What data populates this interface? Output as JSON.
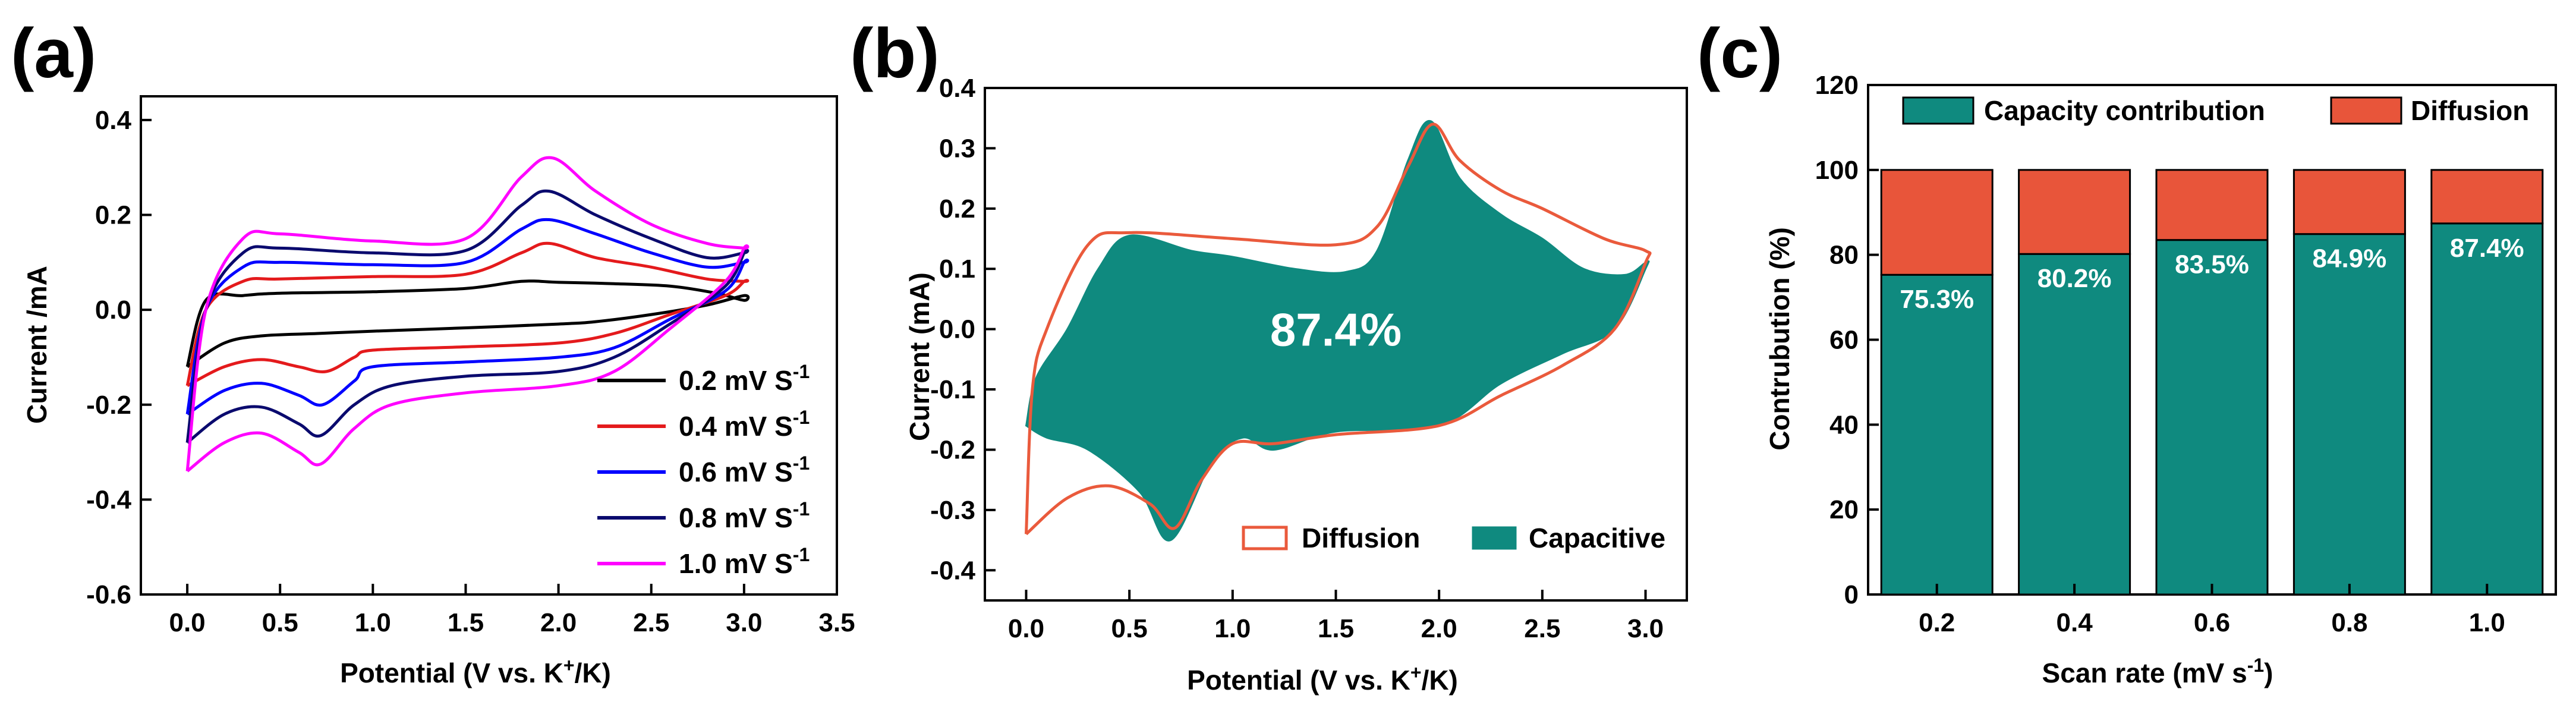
{
  "figure": {
    "panels": [
      {
        "letter": "(a)"
      },
      {
        "letter": "(b)"
      },
      {
        "letter": "(c)"
      }
    ]
  },
  "colors": {
    "capacitive": "#0f8a7f",
    "diffusion": "#e8553a",
    "diffusion_line": "#ea5a3c",
    "axis": "#000000",
    "background": "#ffffff"
  },
  "chart_data": [
    {
      "type": "line",
      "panel": "(a)",
      "title": "",
      "xlabel": "Potential (V vs. K+/K)",
      "xlabel_parts": {
        "pre": "Potential (V vs. K",
        "sup": "+",
        "post": "/K)"
      },
      "ylabel": "Current /mA",
      "xlim": [
        -0.25,
        3.5
      ],
      "ylim": [
        -0.6,
        0.45
      ],
      "xticks": [
        "0.0",
        "0.5",
        "1.0",
        "1.5",
        "2.0",
        "2.5",
        "3.0",
        "3.5"
      ],
      "xtick_values": [
        0,
        0.5,
        1.0,
        1.5,
        2.0,
        2.5,
        3.0,
        3.5
      ],
      "yticks": [
        "-0.6",
        "-0.4",
        "-0.2",
        "0.0",
        "0.2",
        "0.4"
      ],
      "ytick_values": [
        -0.6,
        -0.4,
        -0.2,
        0.0,
        0.2,
        0.4
      ],
      "legend_position": "bottom-right",
      "series": [
        {
          "name": "0.2 mV S-1",
          "label": "0.2 mV S",
          "sup": "-1",
          "color": "#000000",
          "anodic": [
            [
              0,
              -0.12
            ],
            [
              0.1,
              0.02
            ],
            [
              0.3,
              0.03
            ],
            [
              0.5,
              0.035
            ],
            [
              1.0,
              0.038
            ],
            [
              1.5,
              0.045
            ],
            [
              1.8,
              0.06
            ],
            [
              2.0,
              0.058
            ],
            [
              2.3,
              0.055
            ],
            [
              2.6,
              0.05
            ],
            [
              2.85,
              0.035
            ],
            [
              3.0,
              0.02
            ]
          ],
          "cathodic": [
            [
              3.0,
              0.03
            ],
            [
              2.8,
              0.01
            ],
            [
              2.5,
              -0.01
            ],
            [
              2.2,
              -0.025
            ],
            [
              2.0,
              -0.03
            ],
            [
              1.5,
              -0.038
            ],
            [
              1.0,
              -0.045
            ],
            [
              0.7,
              -0.05
            ],
            [
              0.4,
              -0.055
            ],
            [
              0.2,
              -0.07
            ],
            [
              0,
              -0.12
            ]
          ]
        },
        {
          "name": "0.4 mV S-1",
          "label": "0.4 mV S",
          "sup": "-1",
          "color": "#e41a1c",
          "anodic": [
            [
              0,
              -0.16
            ],
            [
              0.1,
              0.0
            ],
            [
              0.3,
              0.06
            ],
            [
              0.5,
              0.065
            ],
            [
              1.0,
              0.07
            ],
            [
              1.5,
              0.075
            ],
            [
              1.8,
              0.12
            ],
            [
              1.95,
              0.14
            ],
            [
              2.2,
              0.11
            ],
            [
              2.5,
              0.09
            ],
            [
              2.8,
              0.065
            ],
            [
              3.0,
              0.06
            ]
          ],
          "cathodic": [
            [
              3.0,
              0.06
            ],
            [
              2.9,
              0.03
            ],
            [
              2.6,
              -0.01
            ],
            [
              2.3,
              -0.05
            ],
            [
              2.0,
              -0.07
            ],
            [
              1.5,
              -0.078
            ],
            [
              1.0,
              -0.085
            ],
            [
              0.9,
              -0.1
            ],
            [
              0.75,
              -0.13
            ],
            [
              0.6,
              -0.12
            ],
            [
              0.4,
              -0.105
            ],
            [
              0.2,
              -0.12
            ],
            [
              0,
              -0.16
            ]
          ]
        },
        {
          "name": "0.6 mV S-1",
          "label": "0.6 mV S",
          "sup": "-1",
          "color": "#0000ff",
          "anodic": [
            [
              0,
              -0.22
            ],
            [
              0.1,
              0.0
            ],
            [
              0.3,
              0.09
            ],
            [
              0.5,
              0.1
            ],
            [
              1.0,
              0.095
            ],
            [
              1.5,
              0.1
            ],
            [
              1.8,
              0.17
            ],
            [
              1.95,
              0.19
            ],
            [
              2.2,
              0.16
            ],
            [
              2.5,
              0.12
            ],
            [
              2.8,
              0.09
            ],
            [
              3.0,
              0.1
            ]
          ],
          "cathodic": [
            [
              3.0,
              0.1
            ],
            [
              2.9,
              0.04
            ],
            [
              2.6,
              -0.02
            ],
            [
              2.3,
              -0.08
            ],
            [
              2.0,
              -0.1
            ],
            [
              1.5,
              -0.11
            ],
            [
              1.0,
              -0.12
            ],
            [
              0.9,
              -0.15
            ],
            [
              0.73,
              -0.2
            ],
            [
              0.6,
              -0.18
            ],
            [
              0.4,
              -0.155
            ],
            [
              0.2,
              -0.17
            ],
            [
              0,
              -0.22
            ]
          ]
        },
        {
          "name": "0.8 mV S-1",
          "label": "0.8 mV S",
          "sup": "-1",
          "color": "#0a0a6e",
          "anodic": [
            [
              0,
              -0.28
            ],
            [
              0.1,
              0.0
            ],
            [
              0.3,
              0.12
            ],
            [
              0.5,
              0.13
            ],
            [
              1.0,
              0.12
            ],
            [
              1.5,
              0.125
            ],
            [
              1.8,
              0.22
            ],
            [
              1.95,
              0.25
            ],
            [
              2.2,
              0.2
            ],
            [
              2.5,
              0.15
            ],
            [
              2.8,
              0.11
            ],
            [
              3.0,
              0.12
            ]
          ],
          "cathodic": [
            [
              3.0,
              0.12
            ],
            [
              2.9,
              0.05
            ],
            [
              2.6,
              -0.03
            ],
            [
              2.3,
              -0.1
            ],
            [
              2.0,
              -0.13
            ],
            [
              1.5,
              -0.14
            ],
            [
              1.1,
              -0.16
            ],
            [
              0.9,
              -0.2
            ],
            [
              0.72,
              -0.265
            ],
            [
              0.6,
              -0.24
            ],
            [
              0.4,
              -0.205
            ],
            [
              0.2,
              -0.22
            ],
            [
              0,
              -0.28
            ]
          ]
        },
        {
          "name": "1.0 mV S-1",
          "label": "1.0 mV S",
          "sup": "-1",
          "color": "#ff00ff",
          "anodic": [
            [
              0,
              -0.34
            ],
            [
              0.1,
              0.0
            ],
            [
              0.3,
              0.15
            ],
            [
              0.5,
              0.16
            ],
            [
              1.0,
              0.145
            ],
            [
              1.5,
              0.15
            ],
            [
              1.8,
              0.28
            ],
            [
              1.97,
              0.32
            ],
            [
              2.2,
              0.25
            ],
            [
              2.5,
              0.18
            ],
            [
              2.8,
              0.14
            ],
            [
              3.0,
              0.13
            ]
          ],
          "cathodic": [
            [
              3.0,
              0.13
            ],
            [
              2.9,
              0.06
            ],
            [
              2.6,
              -0.04
            ],
            [
              2.3,
              -0.13
            ],
            [
              2.0,
              -0.16
            ],
            [
              1.5,
              -0.175
            ],
            [
              1.1,
              -0.2
            ],
            [
              0.9,
              -0.25
            ],
            [
              0.72,
              -0.325
            ],
            [
              0.6,
              -0.3
            ],
            [
              0.4,
              -0.26
            ],
            [
              0.2,
              -0.28
            ],
            [
              0,
              -0.34
            ]
          ]
        }
      ]
    },
    {
      "type": "area",
      "panel": "(b)",
      "title": "",
      "xlabel": "Potential (V vs. K+/K)",
      "xlabel_parts": {
        "pre": "Potential (V vs. K",
        "sup": "+",
        "post": "/K)"
      },
      "ylabel": "Current (mA)",
      "xlim": [
        -0.2,
        3.2
      ],
      "ylim": [
        -0.45,
        0.4
      ],
      "xticks": [
        "0.0",
        "0.5",
        "1.0",
        "1.5",
        "2.0",
        "2.5",
        "3.0"
      ],
      "xtick_values": [
        0,
        0.5,
        1.0,
        1.5,
        2.0,
        2.5,
        3.0
      ],
      "yticks": [
        "-0.4",
        "-0.3",
        "-0.2",
        "-0.1",
        "0.0",
        "0.1",
        "0.2",
        "0.3",
        "0.4"
      ],
      "ytick_values": [
        -0.4,
        -0.3,
        -0.2,
        -0.1,
        0.0,
        0.1,
        0.2,
        0.3,
        0.4
      ],
      "annotation": "87.4%",
      "annotation_at": [
        1.5,
        0.0
      ],
      "legend_position": "bottom-right",
      "series": [
        {
          "name": "Diffusion",
          "color": "#ea5a3c",
          "style": "outline",
          "points": [
            [
              0,
              -0.34
            ],
            [
              0.03,
              -0.1
            ],
            [
              0.1,
              0.0
            ],
            [
              0.3,
              0.14
            ],
            [
              0.5,
              0.16
            ],
            [
              1.0,
              0.15
            ],
            [
              1.5,
              0.14
            ],
            [
              1.7,
              0.17
            ],
            [
              1.85,
              0.27
            ],
            [
              1.97,
              0.34
            ],
            [
              2.1,
              0.28
            ],
            [
              2.3,
              0.23
            ],
            [
              2.5,
              0.2
            ],
            [
              2.8,
              0.15
            ],
            [
              3.0,
              0.13
            ],
            [
              3.0,
              0.11
            ],
            [
              2.85,
              0.0
            ],
            [
              2.6,
              -0.06
            ],
            [
              2.3,
              -0.11
            ],
            [
              2.0,
              -0.16
            ],
            [
              1.5,
              -0.175
            ],
            [
              1.2,
              -0.19
            ],
            [
              1.0,
              -0.19
            ],
            [
              0.85,
              -0.25
            ],
            [
              0.72,
              -0.33
            ],
            [
              0.6,
              -0.29
            ],
            [
              0.4,
              -0.26
            ],
            [
              0.2,
              -0.28
            ],
            [
              0,
              -0.34
            ]
          ]
        },
        {
          "name": "Capacitive",
          "color": "#0f8a7f",
          "style": "filled",
          "points": [
            [
              0,
              -0.16
            ],
            [
              0.05,
              -0.08
            ],
            [
              0.2,
              0.0
            ],
            [
              0.35,
              0.1
            ],
            [
              0.5,
              0.155
            ],
            [
              0.8,
              0.13
            ],
            [
              1.0,
              0.12
            ],
            [
              1.3,
              0.1
            ],
            [
              1.55,
              0.095
            ],
            [
              1.7,
              0.13
            ],
            [
              1.85,
              0.28
            ],
            [
              1.96,
              0.345
            ],
            [
              2.1,
              0.25
            ],
            [
              2.3,
              0.19
            ],
            [
              2.5,
              0.15
            ],
            [
              2.7,
              0.1
            ],
            [
              2.9,
              0.09
            ],
            [
              3.0,
              0.11
            ],
            [
              3.0,
              0.1
            ],
            [
              2.85,
              0.0
            ],
            [
              2.6,
              -0.04
            ],
            [
              2.3,
              -0.09
            ],
            [
              2.0,
              -0.16
            ],
            [
              1.5,
              -0.17
            ],
            [
              1.2,
              -0.2
            ],
            [
              1.05,
              -0.18
            ],
            [
              0.9,
              -0.22
            ],
            [
              0.7,
              -0.35
            ],
            [
              0.55,
              -0.27
            ],
            [
              0.3,
              -0.2
            ],
            [
              0.1,
              -0.18
            ],
            [
              0,
              -0.16
            ]
          ]
        }
      ]
    },
    {
      "type": "bar",
      "panel": "(c)",
      "title": "",
      "xlabel": "Scan rate (mV s-1)",
      "xlabel_parts": {
        "pre": "Scan rate (mV s",
        "sup": "-1",
        "post": ")"
      },
      "ylabel": "Contrubution (%)",
      "ylim": [
        0,
        120
      ],
      "yticks": [
        "0",
        "20",
        "40",
        "60",
        "80",
        "100",
        "120"
      ],
      "ytick_values": [
        0,
        20,
        40,
        60,
        80,
        100,
        120
      ],
      "categories": [
        "0.2",
        "0.4",
        "0.6",
        "0.8",
        "1.0"
      ],
      "legend_position": "top",
      "series": [
        {
          "name": "Capacity contribution",
          "color": "#0f8a7f",
          "values": [
            75.3,
            80.2,
            83.5,
            84.9,
            87.4
          ],
          "labels": [
            "75.3%",
            "80.2%",
            "83.5%",
            "84.9%",
            "87.4%"
          ]
        },
        {
          "name": "Diffusion",
          "color": "#e8553a",
          "values": [
            24.7,
            19.8,
            16.5,
            15.1,
            12.6
          ]
        }
      ]
    }
  ]
}
